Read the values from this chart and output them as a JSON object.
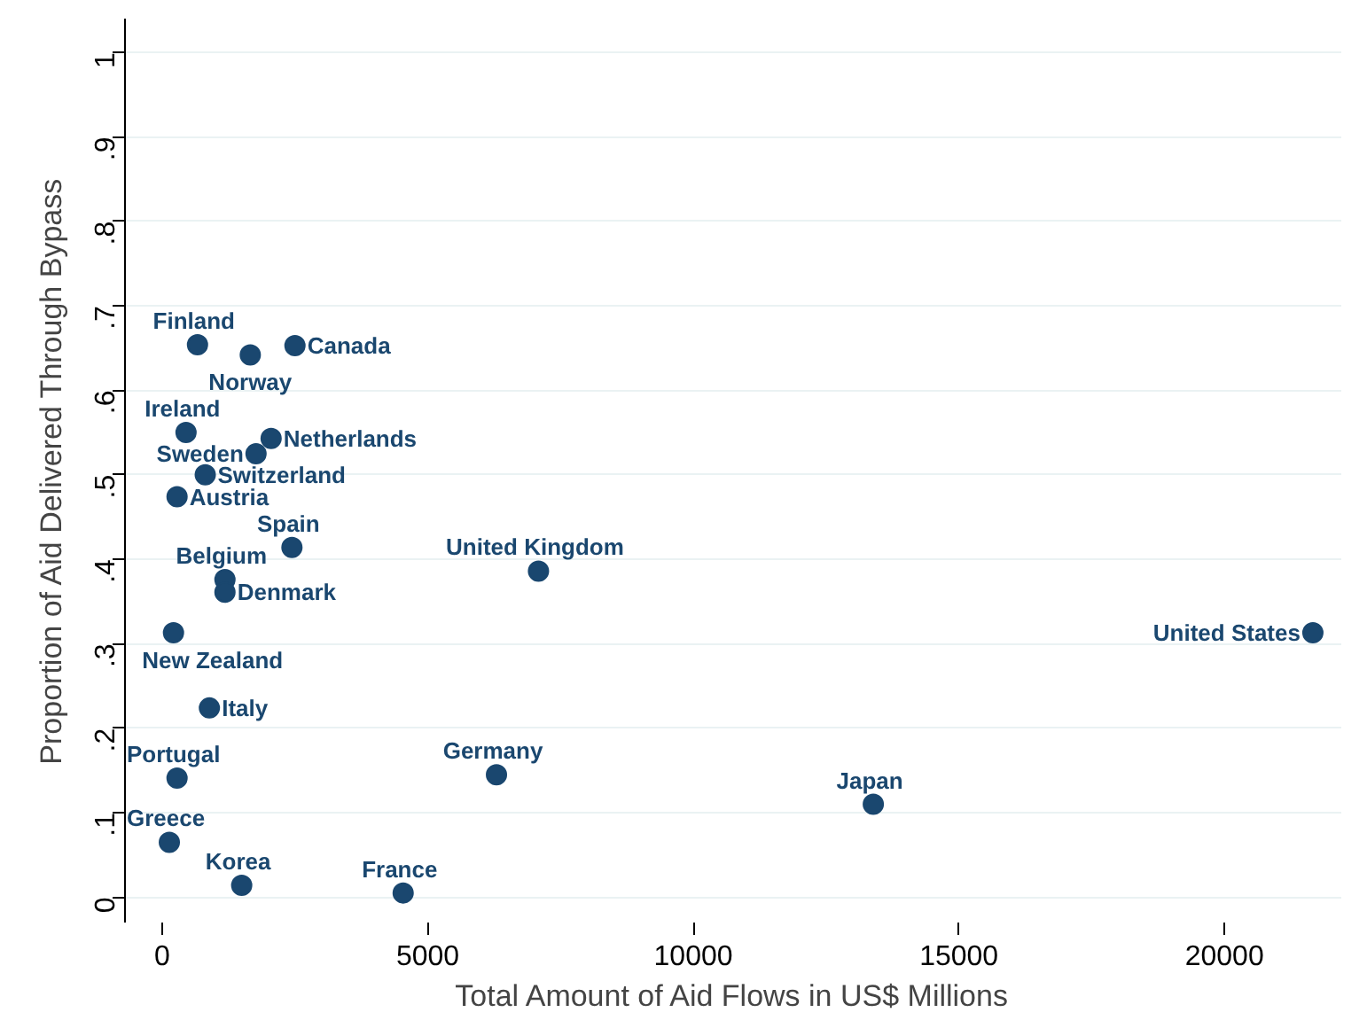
{
  "chart_data": {
    "type": "scatter",
    "xlabel": "Total Amount of Aid Flows in US$ Millions",
    "ylabel": "Proportion of Aid Delivered Through Bypass",
    "x": [
      665,
      1659,
      2500,
      449,
      1767,
      2051,
      811,
      280,
      2443,
      1182,
      1182,
      213,
      7085,
      21665,
      889,
      280,
      6294,
      135,
      1497,
      4537,
      13389
    ],
    "series": [
      {
        "color": "#1a476f",
        "values": [
          0.654,
          0.642,
          0.653,
          0.55,
          0.525,
          0.543,
          0.5,
          0.474,
          0.414,
          0.376,
          0.361,
          0.313,
          0.386,
          0.313,
          0.224,
          0.141,
          0.145,
          0.065,
          0.014,
          0.005,
          0.11
        ]
      }
    ],
    "annotations": [
      {
        "text": "Finland",
        "x": 665,
        "y": 0.654
      },
      {
        "text": "Norway",
        "x": 1659,
        "y": 0.642
      },
      {
        "text": "Canada",
        "x": 2500,
        "y": 0.653
      },
      {
        "text": "Ireland",
        "x": 449,
        "y": 0.55
      },
      {
        "text": "Sweden",
        "x": 1767,
        "y": 0.525
      },
      {
        "text": "Netherlands",
        "x": 2051,
        "y": 0.543
      },
      {
        "text": "Switzerland",
        "x": 811,
        "y": 0.5
      },
      {
        "text": "Austria",
        "x": 280,
        "y": 0.474
      },
      {
        "text": "Spain",
        "x": 2443,
        "y": 0.414
      },
      {
        "text": "Belgium",
        "x": 1182,
        "y": 0.376
      },
      {
        "text": "Denmark",
        "x": 1182,
        "y": 0.361
      },
      {
        "text": "New Zealand",
        "x": 213,
        "y": 0.313
      },
      {
        "text": "United Kingdom",
        "x": 7085,
        "y": 0.386
      },
      {
        "text": "United States",
        "x": 21665,
        "y": 0.313
      },
      {
        "text": "Italy",
        "x": 889,
        "y": 0.224
      },
      {
        "text": "Portugal",
        "x": 280,
        "y": 0.141
      },
      {
        "text": "Germany",
        "x": 6294,
        "y": 0.145
      },
      {
        "text": "Greece",
        "x": 135,
        "y": 0.065
      },
      {
        "text": "Korea",
        "x": 1497,
        "y": 0.014
      },
      {
        "text": "France",
        "x": 4537,
        "y": 0.005
      },
      {
        "text": "Japan",
        "x": 13389,
        "y": 0.11
      }
    ],
    "xlim": [
      -700,
      22200
    ],
    "ylim": [
      -0.03,
      1.04
    ],
    "xticks": [
      0,
      5000,
      10000,
      15000,
      20000
    ],
    "yticks": [
      0,
      {
        "value": 0.1,
        "label": ".1"
      },
      {
        "value": 0.2,
        "label": ".2"
      },
      {
        "value": 0.3,
        "label": ".3"
      },
      {
        "value": 0.4,
        "label": ".4"
      },
      {
        "value": 0.5,
        "label": ".5"
      },
      {
        "value": 0.6,
        "label": ".6"
      },
      {
        "value": 0.7,
        "label": ".7"
      },
      {
        "value": 0.8,
        "label": ".8"
      },
      {
        "value": 0.9,
        "label": ".9"
      },
      1
    ],
    "grid": "y",
    "marker": "circle"
  }
}
